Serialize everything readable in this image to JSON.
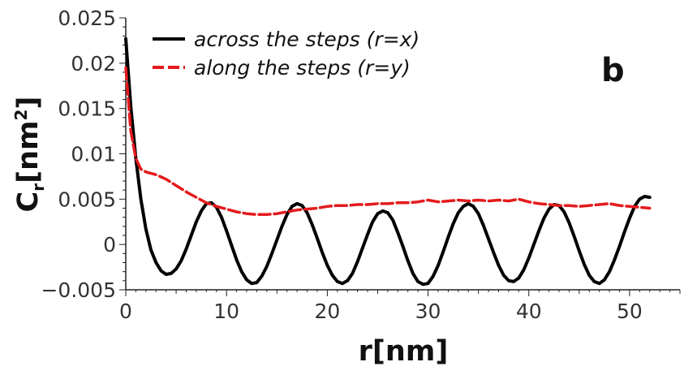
{
  "chart_data": {
    "type": "line",
    "panel_label": "b",
    "xlabel": "r[nm]",
    "ylabel": {
      "main": "C",
      "sub": "r",
      "bracket_open": "[nm",
      "sup": "2",
      "bracket_close": "]"
    },
    "xlim": [
      0,
      55
    ],
    "ylim": [
      -0.005,
      0.025
    ],
    "xticks": [
      0,
      10,
      20,
      30,
      40,
      50
    ],
    "xtick_labels": [
      "0",
      "10",
      "20",
      "30",
      "40",
      "50"
    ],
    "yticks": [
      -0.005,
      0,
      0.005,
      0.01,
      0.015,
      0.02,
      0.025
    ],
    "ytick_labels": [
      "−0.005",
      "0",
      "0.005",
      "0.01",
      "0.015",
      "0.02",
      "0.025"
    ],
    "grid": false,
    "legend_position": "top-left",
    "series": [
      {
        "name": "across the steps (r=x)",
        "color": "#000000",
        "style": "solid",
        "x": [
          0,
          0.5,
          1,
          1.5,
          2,
          2.5,
          3,
          3.5,
          4,
          4.5,
          5,
          5.5,
          6,
          6.5,
          7,
          7.5,
          8,
          8.5,
          9,
          9.5,
          10,
          10.5,
          11,
          11.5,
          12,
          12.5,
          13,
          13.5,
          14,
          14.5,
          15,
          15.5,
          16,
          16.5,
          17,
          17.5,
          18,
          18.5,
          19,
          19.5,
          20,
          20.5,
          21,
          21.5,
          22,
          22.5,
          23,
          23.5,
          24,
          24.5,
          25,
          25.5,
          26,
          26.5,
          27,
          27.5,
          28,
          28.5,
          29,
          29.5,
          30,
          30.5,
          31,
          31.5,
          32,
          32.5,
          33,
          33.5,
          34,
          34.5,
          35,
          35.5,
          36,
          36.5,
          37,
          37.5,
          38,
          38.5,
          39,
          39.5,
          40,
          40.5,
          41,
          41.5,
          42,
          42.5,
          43,
          43.5,
          44,
          44.5,
          45,
          45.5,
          46,
          46.5,
          47,
          47.5,
          48,
          48.5,
          49,
          49.5,
          50,
          50.5,
          51,
          51.5,
          52
        ],
        "y": [
          0.0227,
          0.0152,
          0.0095,
          0.005,
          0.0017,
          -0.0006,
          -0.002,
          -0.0029,
          -0.0033,
          -0.0032,
          -0.0027,
          -0.0018,
          -0.0005,
          0.001,
          0.0025,
          0.0037,
          0.0045,
          0.0046,
          0.0041,
          0.003,
          0.0015,
          -0.0001,
          -0.0017,
          -0.003,
          -0.0039,
          -0.0043,
          -0.0042,
          -0.0035,
          -0.0024,
          -0.001,
          0.0005,
          0.002,
          0.0033,
          0.0042,
          0.0045,
          0.0043,
          0.0035,
          0.0022,
          0.0007,
          -0.0009,
          -0.0023,
          -0.0034,
          -0.0041,
          -0.0043,
          -0.004,
          -0.0032,
          -0.0019,
          -0.0004,
          0.0011,
          0.0025,
          0.0034,
          0.0037,
          0.0035,
          0.0027,
          0.0013,
          -0.0002,
          -0.0018,
          -0.0032,
          -0.0041,
          -0.0044,
          -0.0043,
          -0.0035,
          -0.0023,
          -0.0008,
          0.0008,
          0.0023,
          0.0035,
          0.0042,
          0.0045,
          0.0042,
          0.0034,
          0.0021,
          0.0006,
          -0.0009,
          -0.0023,
          -0.0034,
          -0.004,
          -0.0041,
          -0.0037,
          -0.0028,
          -0.0015,
          0.0,
          0.0015,
          0.0029,
          0.0039,
          0.0044,
          0.0043,
          0.0036,
          0.0024,
          0.0009,
          -0.0007,
          -0.0022,
          -0.0034,
          -0.0041,
          -0.0043,
          -0.0039,
          -0.003,
          -0.0017,
          -0.0002,
          0.0014,
          0.0029,
          0.0042,
          0.005,
          0.0053,
          0.0052
        ]
      },
      {
        "name": "along the steps (r=y)",
        "color": "#e41a1c",
        "style": "dashed",
        "x": [
          0,
          0.5,
          1,
          1.5,
          2,
          3,
          4,
          5,
          6,
          7,
          8,
          9,
          10,
          11,
          12,
          13,
          14,
          15,
          16,
          17,
          18,
          19,
          20,
          21,
          22,
          23,
          24,
          25,
          26,
          27,
          28,
          29,
          30,
          31,
          32,
          33,
          34,
          35,
          36,
          37,
          38,
          39,
          40,
          41,
          42,
          43,
          44,
          45,
          46,
          47,
          48,
          49,
          50,
          51,
          52
        ],
        "y": [
          0.0195,
          0.0125,
          0.0095,
          0.0083,
          0.008,
          0.0077,
          0.0072,
          0.0065,
          0.0058,
          0.0052,
          0.0046,
          0.0042,
          0.0039,
          0.0036,
          0.0034,
          0.0033,
          0.0033,
          0.0034,
          0.0036,
          0.0038,
          0.0039,
          0.004,
          0.0042,
          0.0043,
          0.0043,
          0.0044,
          0.0044,
          0.0045,
          0.0045,
          0.0046,
          0.0046,
          0.0047,
          0.0049,
          0.0047,
          0.0048,
          0.0049,
          0.0048,
          0.0049,
          0.0048,
          0.0049,
          0.0048,
          0.005,
          0.0047,
          0.0045,
          0.0044,
          0.0043,
          0.0043,
          0.0042,
          0.0043,
          0.0044,
          0.0045,
          0.0043,
          0.0042,
          0.0041,
          0.004
        ]
      }
    ]
  }
}
